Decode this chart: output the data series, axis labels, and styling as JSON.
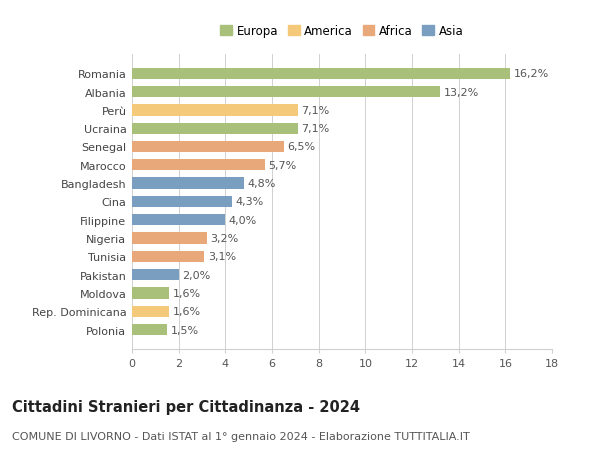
{
  "categories": [
    "Romania",
    "Albania",
    "Perù",
    "Ucraina",
    "Senegal",
    "Marocco",
    "Bangladesh",
    "Cina",
    "Filippine",
    "Nigeria",
    "Tunisia",
    "Pakistan",
    "Moldova",
    "Rep. Dominicana",
    "Polonia"
  ],
  "values": [
    16.2,
    13.2,
    7.1,
    7.1,
    6.5,
    5.7,
    4.8,
    4.3,
    4.0,
    3.2,
    3.1,
    2.0,
    1.6,
    1.6,
    1.5
  ],
  "labels": [
    "16,2%",
    "13,2%",
    "7,1%",
    "7,1%",
    "6,5%",
    "5,7%",
    "4,8%",
    "4,3%",
    "4,0%",
    "3,2%",
    "3,1%",
    "2,0%",
    "1,6%",
    "1,6%",
    "1,5%"
  ],
  "continents": [
    "Europa",
    "Europa",
    "America",
    "Europa",
    "Africa",
    "Africa",
    "Asia",
    "Asia",
    "Asia",
    "Africa",
    "Africa",
    "Asia",
    "Europa",
    "America",
    "Europa"
  ],
  "colors": {
    "Europa": "#a8c07a",
    "America": "#f5c97a",
    "Africa": "#e8a87a",
    "Asia": "#7a9ec0"
  },
  "legend_order": [
    "Europa",
    "America",
    "Africa",
    "Asia"
  ],
  "xlim": [
    0,
    18
  ],
  "xticks": [
    0,
    2,
    4,
    6,
    8,
    10,
    12,
    14,
    16,
    18
  ],
  "title": "Cittadini Stranieri per Cittadinanza - 2024",
  "subtitle": "COMUNE DI LIVORNO - Dati ISTAT al 1° gennaio 2024 - Elaborazione TUTTITALIA.IT",
  "background_color": "#ffffff",
  "grid_color": "#d0d0d0",
  "bar_height": 0.62,
  "label_fontsize": 8.0,
  "title_fontsize": 10.5,
  "subtitle_fontsize": 8.0,
  "ytick_fontsize": 8.0,
  "xtick_fontsize": 8.0,
  "legend_fontsize": 8.5
}
